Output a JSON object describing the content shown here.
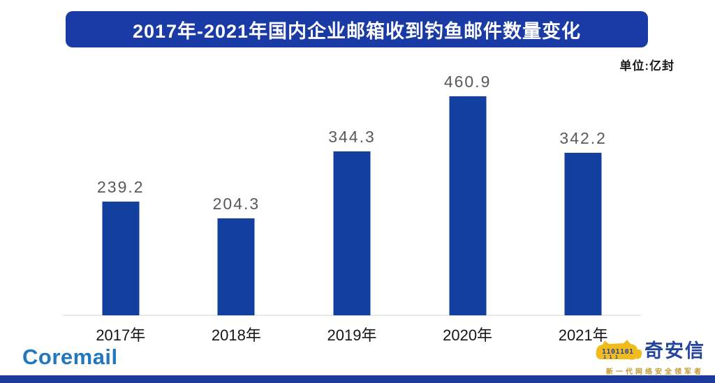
{
  "header": {
    "title": "2017年-2021年国内企业邮箱收到钓鱼邮件数量变化",
    "unit_label": "单位:亿封"
  },
  "chart_data": {
    "type": "bar",
    "title": "2017年-2021年国内企业邮箱收到钓鱼邮件数量变化",
    "unit": "亿封",
    "categories": [
      "2017年",
      "2018年",
      "2019年",
      "2020年",
      "2021年"
    ],
    "values": [
      239.2,
      204.3,
      344.3,
      460.9,
      342.2
    ],
    "value_labels": [
      "239.2",
      "204.3",
      "344.3",
      "460.9",
      "342.2"
    ],
    "xlabel": "",
    "ylabel": "",
    "ylim": [
      0,
      500
    ],
    "grid": false,
    "legend": false,
    "bar_color": "#13409e",
    "value_label_color": "#595959"
  },
  "footer": {
    "coremail_logo_text": "Coremail",
    "qianxin_logo_text": "奇安信",
    "qianxin_tagline": "新一代网络安全领军者",
    "tiger_binary": "1101101"
  },
  "colors": {
    "banner_blue": "#1a3ba6",
    "bar_blue": "#13409e",
    "value_gray": "#595959",
    "coremail_blue": "#2377bd",
    "qianxin_blue": "#24439b",
    "tagline_gold": "#bf9a30",
    "tiger_yellow": "#f2bb1d",
    "strip_blue": "#1b3a9c"
  }
}
